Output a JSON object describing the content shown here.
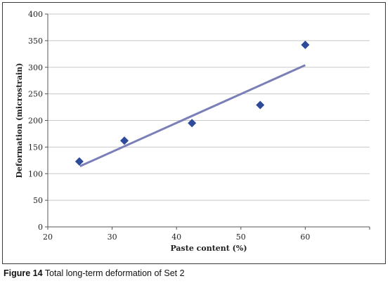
{
  "caption": {
    "label": "Figure 14",
    "text": "Total long-term deformation of Set 2"
  },
  "chart_data": {
    "type": "scatter",
    "title": "",
    "xlabel": "Paste content (%)",
    "ylabel": "Deformation (microstrain)",
    "xlim": [
      20,
      70
    ],
    "ylim": [
      0,
      400
    ],
    "xticks": [
      20,
      30,
      40,
      50,
      60
    ],
    "yticks": [
      0,
      50,
      100,
      150,
      200,
      250,
      300,
      350,
      400
    ],
    "grid": "horizontal",
    "marker": "diamond",
    "marker_color": "#2e4a9a",
    "trend_color": "#7a7fb8",
    "series": [
      {
        "x": [
          24.9,
          31.9,
          42.4,
          53.0,
          60.0
        ],
        "y": [
          123,
          162,
          195,
          229,
          342
        ]
      }
    ],
    "trendline": {
      "type": "linear",
      "x": [
        25,
        60
      ],
      "y": [
        114,
        304
      ]
    }
  }
}
